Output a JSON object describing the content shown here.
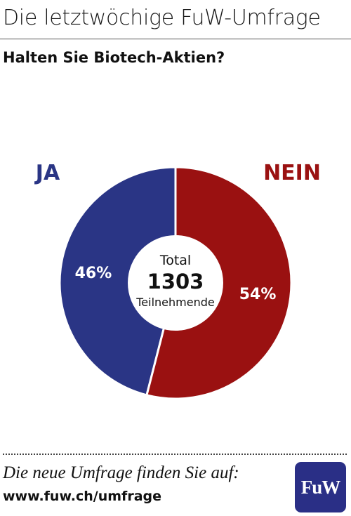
{
  "header": {
    "title": "Die letztwöchige FuW-Umfrage"
  },
  "question": "Halten Sie Biotech-Aktien?",
  "chart_data": {
    "type": "pie",
    "categories": [
      "JA",
      "NEIN"
    ],
    "values": [
      46,
      54
    ],
    "value_labels": [
      "46%",
      "54%"
    ],
    "colors": [
      "#2a3585",
      "#9a1111"
    ],
    "label_colors": [
      "#2a3585",
      "#9a1111"
    ],
    "center": {
      "line1": "Total",
      "line2": "1303",
      "line3": "Teilnehmende"
    }
  },
  "footer": {
    "text": "Die neue Umfrage finden Sie auf:",
    "url": "www.fuw.ch/umfrage",
    "logo_text": "FuW"
  }
}
